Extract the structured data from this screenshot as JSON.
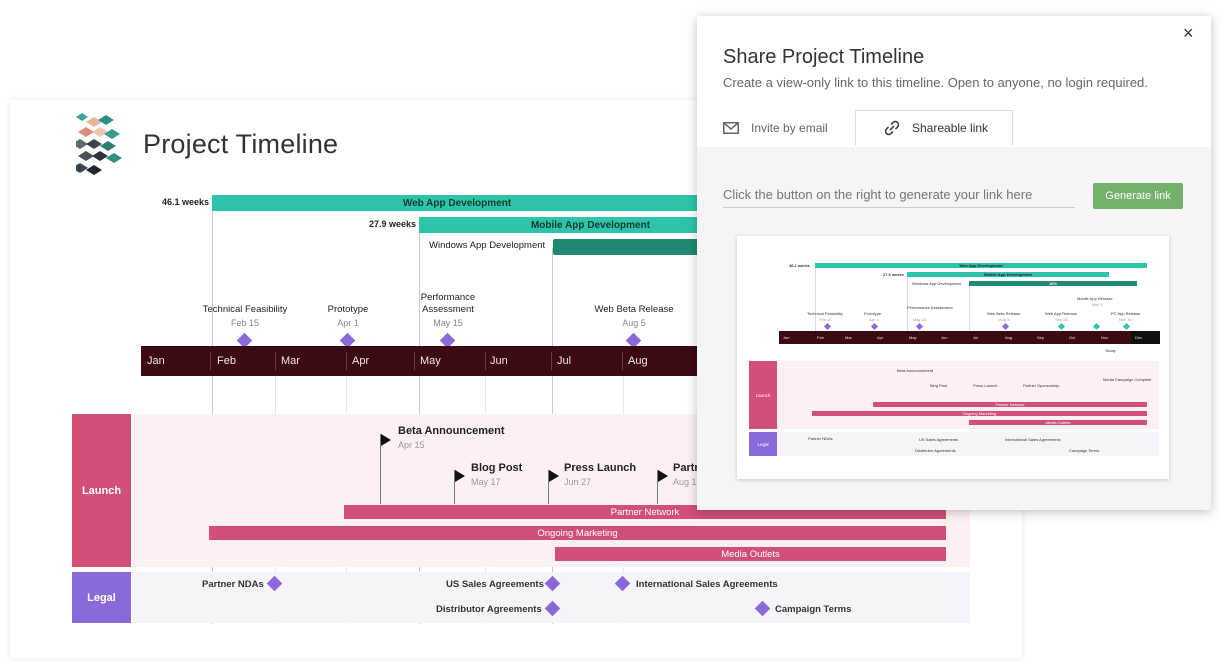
{
  "page": {
    "title": "Project Timeline"
  },
  "timeline": {
    "tasks": [
      {
        "name": "Web App Development",
        "duration": "46.1 weeks",
        "color": "#2ec4a9"
      },
      {
        "name": "Mobile App Development",
        "duration": "27.9 weeks",
        "color": "#2ec4a9"
      },
      {
        "name": "Windows App Development",
        "duration": "",
        "color": "#1f8a74"
      }
    ],
    "milestones": [
      {
        "name": "Technical Feasibility",
        "date": "Feb 15"
      },
      {
        "name": "Prototype",
        "date": "Apr 1"
      },
      {
        "name": "Performance Assessment",
        "line1": "Performance",
        "line2": "Assessment",
        "date": "May 15"
      },
      {
        "name": "Web Beta Release",
        "date": "Aug 5"
      }
    ],
    "months": [
      "Jan",
      "Feb",
      "Mar",
      "Apr",
      "May",
      "Jun",
      "Jul",
      "Aug"
    ],
    "swimlanes": {
      "launch": {
        "label": "Launch",
        "color": "#d24f78",
        "events": [
          {
            "name": "Beta Announcement",
            "date": "Apr 15"
          },
          {
            "name": "Blog Post",
            "date": "May 17"
          },
          {
            "name": "Press Launch",
            "date": "Jun 27"
          },
          {
            "name": "Partn",
            "date": "Aug 1"
          }
        ],
        "bars": [
          "Partner Network",
          "Ongoing Marketing",
          "Media Outlets"
        ]
      },
      "legal": {
        "label": "Legal",
        "color": "#8a6ad8",
        "items": [
          "Partner NDAs",
          "US Sales Agreements",
          "International Sales Agreements",
          "Distributor Agreements",
          "Campaign Terms"
        ]
      }
    }
  },
  "share": {
    "title": "Share Project Timeline",
    "subtitle": "Create a view-only link to this timeline. Open to anyone, no login required.",
    "close": "×",
    "tabs": [
      {
        "label": "Invite by email",
        "icon": "envelope-icon"
      },
      {
        "label": "Shareable link",
        "icon": "link-icon"
      }
    ],
    "active_tab": 1,
    "link_placeholder": "Click the button on the right to generate your link here",
    "generate_label": "Generate link"
  },
  "thumbnail": {
    "durations": [
      "46.1 weeks",
      "27.9 weeks"
    ],
    "tasks": [
      "Web App Development",
      "Mobile App Development",
      "Windows App Development",
      "10%"
    ],
    "milestones": [
      {
        "name": "Technical Feasibility",
        "date": "Feb 15"
      },
      {
        "name": "Prototype",
        "date": "Apr 1"
      },
      {
        "name": "Performance Assessment",
        "date": "May 15"
      },
      {
        "name": "Web Beta Release",
        "date": "Aug 5"
      },
      {
        "name": "Web App Release",
        "date": "Sep 28"
      },
      {
        "name": "Mobile App Release",
        "date": "Nov 1"
      },
      {
        "name": "PC App Release",
        "date": "Nov 30"
      }
    ],
    "months": [
      "Jan",
      "Feb",
      "Mar",
      "Apr",
      "May",
      "Jun",
      "Jul",
      "Aug",
      "Sep",
      "Oct",
      "Nov",
      "Dec"
    ],
    "today": "Today",
    "launch_label": "Launch",
    "legal_label": "Legal",
    "launch_events": [
      {
        "name": "Beta Announcement",
        "date": "Apr 15"
      },
      {
        "name": "Blog Post",
        "date": "May 17"
      },
      {
        "name": "Press Launch",
        "date": "Jun 27"
      },
      {
        "name": "Partner Sponsorship",
        "date": "Aug 14"
      },
      {
        "name": "Media Campaign Complete",
        "date": "Oct 25"
      }
    ],
    "launch_bars": [
      "Partner Network",
      "Ongoing Marketing",
      "Media Outlets"
    ],
    "legal_items": [
      "Partner NDAs",
      "US Sales Agreements",
      "International Sales Agreements",
      "Distributor Agreements",
      "Campaign Terms"
    ]
  }
}
